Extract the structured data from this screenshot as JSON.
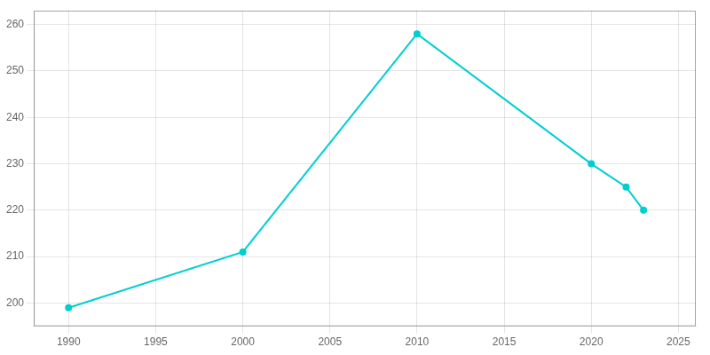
{
  "chart_data": {
    "type": "line",
    "x": [
      1990,
      2000,
      2010,
      2020,
      2022,
      2023
    ],
    "values": [
      199,
      211,
      258,
      230,
      225,
      220
    ],
    "color": "#00CED1",
    "marker": "circle",
    "line_style": "solid",
    "xlim": [
      1988,
      2026
    ],
    "ylim": [
      195,
      263
    ],
    "xticks": [
      1990,
      1995,
      2000,
      2005,
      2010,
      2015,
      2020,
      2025
    ],
    "yticks": [
      200,
      210,
      220,
      230,
      240,
      250,
      260
    ],
    "grid": true
  }
}
